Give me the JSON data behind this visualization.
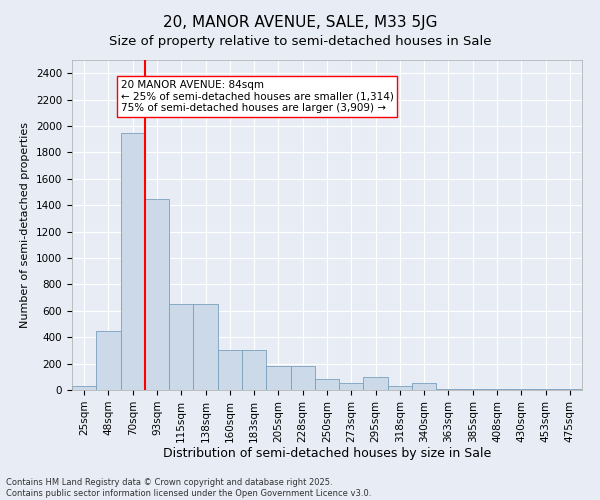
{
  "title": "20, MANOR AVENUE, SALE, M33 5JG",
  "subtitle": "Size of property relative to semi-detached houses in Sale",
  "xlabel": "Distribution of semi-detached houses by size in Sale",
  "ylabel": "Number of semi-detached properties",
  "footer_line1": "Contains HM Land Registry data © Crown copyright and database right 2025.",
  "footer_line2": "Contains public sector information licensed under the Open Government Licence v3.0.",
  "categories": [
    "25sqm",
    "48sqm",
    "70sqm",
    "93sqm",
    "115sqm",
    "138sqm",
    "160sqm",
    "183sqm",
    "205sqm",
    "228sqm",
    "250sqm",
    "273sqm",
    "295sqm",
    "318sqm",
    "340sqm",
    "363sqm",
    "385sqm",
    "408sqm",
    "430sqm",
    "453sqm",
    "475sqm"
  ],
  "values": [
    30,
    450,
    1950,
    1450,
    650,
    650,
    300,
    300,
    180,
    180,
    80,
    50,
    100,
    30,
    50,
    5,
    5,
    5,
    5,
    5,
    5
  ],
  "bar_color": "#ccd9e8",
  "bar_edge_color": "#7aa0bc",
  "vline_bar_index": 2,
  "vline_color": "red",
  "annotation_text": "20 MANOR AVENUE: 84sqm\n← 25% of semi-detached houses are smaller (1,314)\n75% of semi-detached houses are larger (3,909) →",
  "annotation_box_facecolor": "white",
  "annotation_box_edgecolor": "red",
  "ylim": [
    0,
    2500
  ],
  "yticks": [
    0,
    200,
    400,
    600,
    800,
    1000,
    1200,
    1400,
    1600,
    1800,
    2000,
    2200,
    2400
  ],
  "background_color": "#e8edf5",
  "plot_bg_color": "#e8edf5",
  "grid_color": "white",
  "title_fontsize": 11,
  "subtitle_fontsize": 9.5,
  "xlabel_fontsize": 9,
  "ylabel_fontsize": 8,
  "tick_fontsize": 7.5,
  "annotation_fontsize": 7.5,
  "footer_fontsize": 6
}
